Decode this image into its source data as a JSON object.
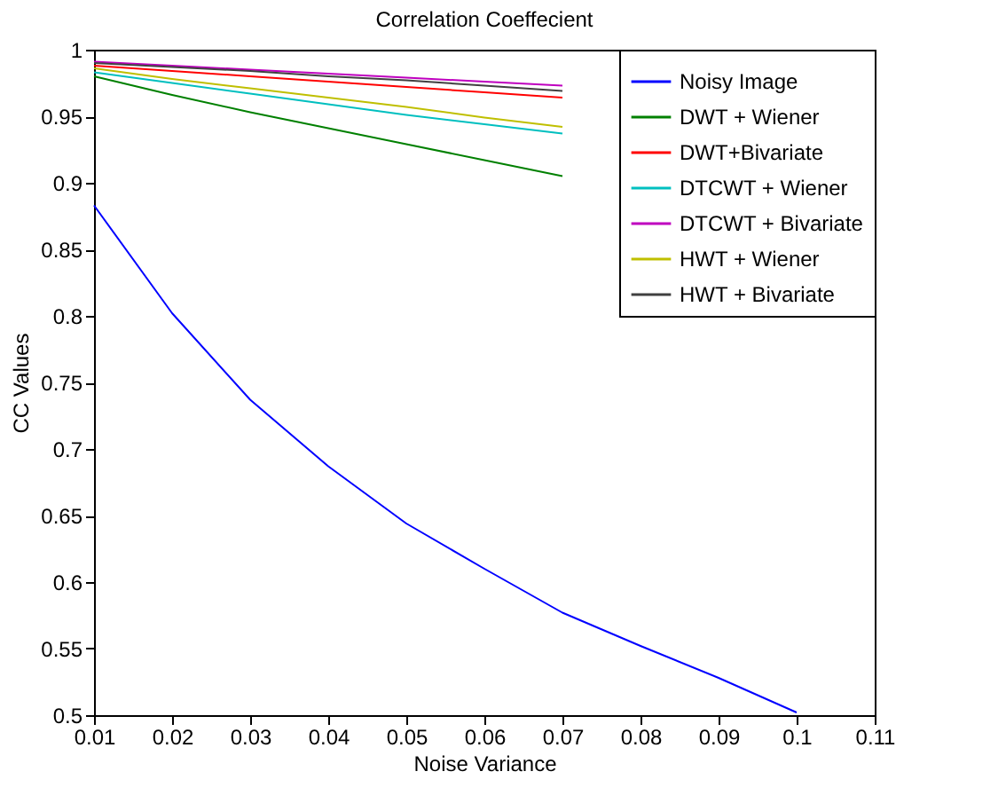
{
  "chart_data": {
    "type": "line",
    "title": "Correlation Coeffecient",
    "xlabel": "Noise Variance",
    "ylabel": "CC Values",
    "x": [
      0.01,
      0.02,
      0.03,
      0.04,
      0.05,
      0.06,
      0.07,
      0.08,
      0.09,
      0.1
    ],
    "series": [
      {
        "name": "Noisy Image",
        "color": "#0000ff",
        "values": [
          0.883,
          0.802,
          0.737,
          0.687,
          0.644,
          0.61,
          0.577,
          0.552,
          0.528,
          0.502
        ]
      },
      {
        "name": "DWT + Wiener",
        "color": "#008000",
        "values": [
          0.98,
          0.966,
          0.953,
          0.941,
          0.929,
          0.917,
          0.905,
          null,
          null,
          null
        ]
      },
      {
        "name": "DWT+Bivariate",
        "color": "#ff0000",
        "values": [
          0.988,
          0.984,
          0.98,
          0.976,
          0.972,
          0.968,
          0.964,
          null,
          null,
          null
        ]
      },
      {
        "name": "DTCWT + Wiener",
        "color": "#00bfbf",
        "values": [
          0.983,
          0.975,
          0.967,
          0.959,
          0.951,
          0.944,
          0.937,
          null,
          null,
          null
        ]
      },
      {
        "name": "DTCWT + Bivariate",
        "color": "#bf00bf",
        "values": [
          0.991,
          0.988,
          0.985,
          0.982,
          0.979,
          0.976,
          0.973,
          null,
          null,
          null
        ]
      },
      {
        "name": "HWT + Wiener",
        "color": "#bfbf00",
        "values": [
          0.986,
          0.978,
          0.971,
          0.964,
          0.957,
          0.949,
          0.942,
          null,
          null,
          null
        ]
      },
      {
        "name": "HWT + Bivariate",
        "color": "#404040",
        "values": [
          0.99,
          0.987,
          0.984,
          0.98,
          0.977,
          0.973,
          0.969,
          null,
          null,
          null
        ]
      }
    ],
    "xlim": [
      0.01,
      0.11
    ],
    "xticks": [
      0.01,
      0.02,
      0.03,
      0.04,
      0.05,
      0.06,
      0.07,
      0.08,
      0.09,
      0.1,
      0.11
    ],
    "ylim": [
      0.5,
      1
    ],
    "yticks": [
      0.5,
      0.55,
      0.6,
      0.65,
      0.7,
      0.75,
      0.8,
      0.85,
      0.9,
      0.95,
      1
    ],
    "grid": false,
    "legend": "top right",
    "marker": "none",
    "line_style": "solid"
  }
}
